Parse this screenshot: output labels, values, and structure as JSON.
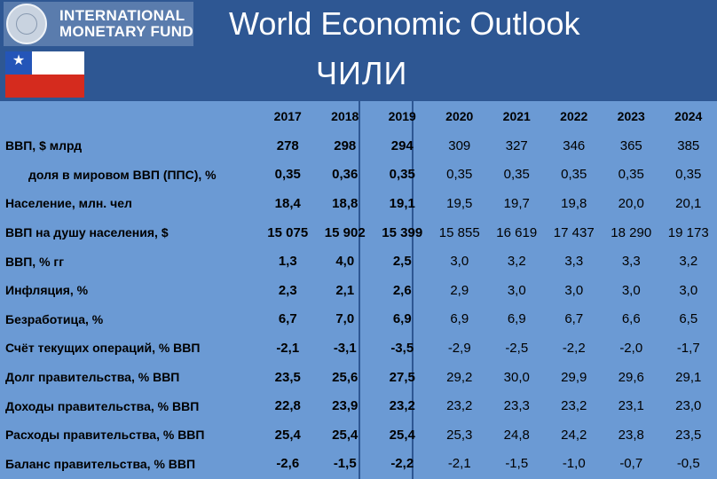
{
  "header": {
    "org_line1": "INTERNATIONAL",
    "org_line2": "MONETARY FUND",
    "title": "World Economic Outlook",
    "country": "ЧИЛИ"
  },
  "colors": {
    "background": "#2e5793",
    "table": "#6b9ad4",
    "flag_blue": "#2455b8",
    "flag_red": "#d52b1e"
  },
  "table": {
    "years": [
      "2017",
      "2018",
      "2019",
      "2020",
      "2021",
      "2022",
      "2023",
      "2024"
    ],
    "rows": [
      {
        "label": "ВВП, $ млрд",
        "values": [
          "278",
          "298",
          "294",
          "309",
          "327",
          "346",
          "365",
          "385"
        ]
      },
      {
        "label": "доля в мировом ВВП (ППС), %",
        "values": [
          "0,35",
          "0,36",
          "0,35",
          "0,35",
          "0,35",
          "0,35",
          "0,35",
          "0,35"
        ]
      },
      {
        "label": "Население, млн. чел",
        "values": [
          "18,4",
          "18,8",
          "19,1",
          "19,5",
          "19,7",
          "19,8",
          "20,0",
          "20,1"
        ]
      },
      {
        "label": "ВВП на душу населения, $",
        "values": [
          "15 075",
          "15 902",
          "15 399",
          "15 855",
          "16 619",
          "17 437",
          "18 290",
          "19 173"
        ]
      },
      {
        "label": "ВВП, % гг",
        "values": [
          "1,3",
          "4,0",
          "2,5",
          "3,0",
          "3,2",
          "3,3",
          "3,3",
          "3,2"
        ]
      },
      {
        "label": "Инфляция, %",
        "values": [
          "2,3",
          "2,1",
          "2,6",
          "2,9",
          "3,0",
          "3,0",
          "3,0",
          "3,0"
        ]
      },
      {
        "label": "Безработица, %",
        "values": [
          "6,7",
          "7,0",
          "6,9",
          "6,9",
          "6,9",
          "6,7",
          "6,6",
          "6,5"
        ]
      },
      {
        "label": "Счёт текущих операций, % ВВП",
        "values": [
          "-2,1",
          "-3,1",
          "-3,5",
          "-2,9",
          "-2,5",
          "-2,2",
          "-2,0",
          "-1,7"
        ]
      },
      {
        "label": "Долг правительства, % ВВП",
        "values": [
          "23,5",
          "25,6",
          "27,5",
          "29,2",
          "30,0",
          "29,9",
          "29,6",
          "29,1"
        ]
      },
      {
        "label": "Доходы правительства, % ВВП",
        "values": [
          "22,8",
          "23,9",
          "23,2",
          "23,2",
          "23,3",
          "23,2",
          "23,1",
          "23,0"
        ]
      },
      {
        "label": "Расходы правительства, % ВВП",
        "values": [
          "25,4",
          "25,4",
          "25,4",
          "25,3",
          "24,8",
          "24,2",
          "23,8",
          "23,5"
        ]
      },
      {
        "label": "Баланс правительства, % ВВП",
        "values": [
          "-2,6",
          "-1,5",
          "-2,2",
          "-2,1",
          "-1,5",
          "-1,0",
          "-0,7",
          "-0,5"
        ]
      }
    ]
  }
}
